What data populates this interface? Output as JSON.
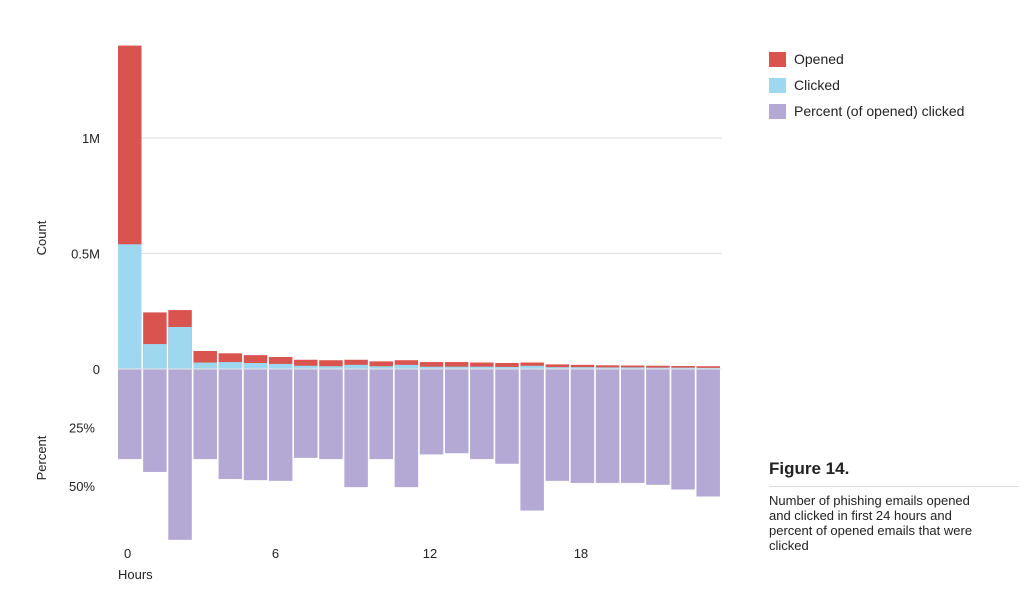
{
  "chart_data": {
    "type": "bar",
    "x_label": "Hours",
    "x_ticks": [
      0,
      6,
      12,
      18
    ],
    "count_panel": {
      "ylabel": "Count",
      "ytick_labels": [
        "0",
        "0.5M",
        "1M"
      ],
      "ytick_values": [
        0,
        500000,
        1000000
      ],
      "ylim": [
        0,
        1400000
      ]
    },
    "percent_panel": {
      "ylabel": "Percent",
      "ytick_labels": [
        "25%",
        "50%"
      ],
      "ytick_values": [
        25,
        50
      ],
      "ylim": [
        0,
        75
      ]
    },
    "x": [
      0,
      1,
      2,
      3,
      4,
      5,
      6,
      7,
      8,
      9,
      10,
      11,
      12,
      13,
      14,
      15,
      16,
      17,
      18,
      19,
      20,
      21,
      22,
      23
    ],
    "series": [
      {
        "name": "Opened",
        "color": "#d9534f",
        "values": [
          1400000,
          245000,
          255000,
          78000,
          68000,
          60000,
          52000,
          40000,
          38000,
          40000,
          33000,
          38000,
          30000,
          30000,
          28000,
          26000,
          28000,
          20000,
          18000,
          16000,
          15000,
          14000,
          13000,
          12000
        ]
      },
      {
        "name": "Clicked",
        "color": "#9dd8f0",
        "values": [
          540000,
          108000,
          182000,
          28000,
          30000,
          26000,
          22000,
          14000,
          12000,
          18000,
          12000,
          18000,
          10000,
          10000,
          10000,
          9000,
          14000,
          8000,
          8000,
          7000,
          7000,
          6000,
          6000,
          5000
        ]
      },
      {
        "name": "Percent (of opened) clicked",
        "color": "#b3a9d4",
        "values": [
          38.5,
          44,
          73,
          38.5,
          47,
          47.5,
          47.8,
          38,
          38.5,
          50.5,
          38.5,
          50.5,
          36.5,
          36,
          38.5,
          40.5,
          60.5,
          47.8,
          48.7,
          48.7,
          48.7,
          49.5,
          51.5,
          54.5
        ]
      }
    ]
  },
  "caption": {
    "title": "Figure 14.",
    "text": "Number of phishing emails opened and clicked in first 24 hours and percent of opened emails that were clicked"
  }
}
